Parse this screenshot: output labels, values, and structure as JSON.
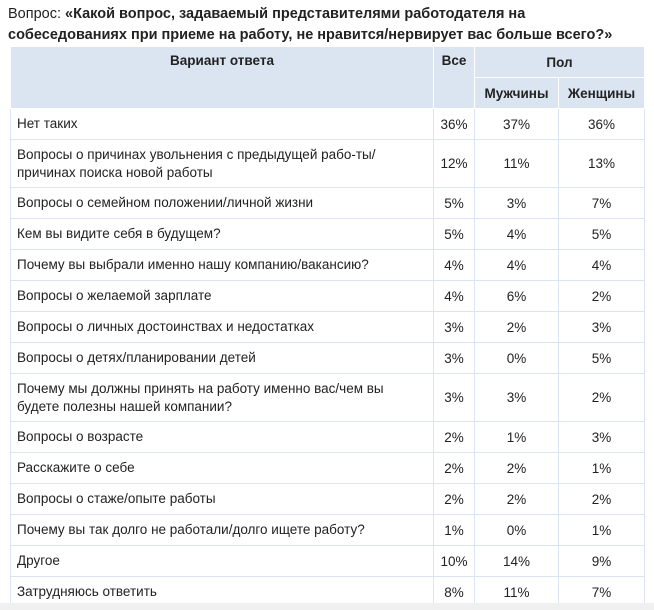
{
  "question_label": "Вопрос:",
  "question_text": "«Какой вопрос, задаваемый представителями работодателя на собеседованиях при приеме на работу, не нравится/нервирует вас больше всего?»",
  "headers": {
    "answer": "Вариант ответа",
    "all": "Все",
    "gender": "Пол",
    "men": "Мужчины",
    "women": "Женщины"
  },
  "rows": [
    {
      "label": "Нет таких",
      "all": "36%",
      "men": "37%",
      "women": "36%"
    },
    {
      "label": "Вопросы о причинах увольнения с предыдущей рабо-ты/причинах поиска новой работы",
      "all": "12%",
      "men": "11%",
      "women": "13%"
    },
    {
      "label": "Вопросы о семейном положении/личной жизни",
      "all": "5%",
      "men": "3%",
      "women": "7%"
    },
    {
      "label": "Кем вы видите себя в будущем?",
      "all": "5%",
      "men": "4%",
      "women": "5%"
    },
    {
      "label": "Почему вы выбрали именно нашу компанию/вакансию?",
      "all": "4%",
      "men": "4%",
      "women": "4%"
    },
    {
      "label": "Вопросы о желаемой зарплате",
      "all": "4%",
      "men": "6%",
      "women": "2%"
    },
    {
      "label": "Вопросы о личных достоинствах и недостатках",
      "all": "3%",
      "men": "2%",
      "women": "3%"
    },
    {
      "label": "Вопросы о детях/планировании детей",
      "all": "3%",
      "men": "0%",
      "women": "5%"
    },
    {
      "label": "Почему мы должны принять на работу именно вас/чем вы будете полезны нашей компании?",
      "all": "3%",
      "men": "3%",
      "women": "2%"
    },
    {
      "label": "Вопросы о возрасте",
      "all": "2%",
      "men": "1%",
      "women": "3%"
    },
    {
      "label": "Расскажите о себе",
      "all": "2%",
      "men": "2%",
      "women": "1%"
    },
    {
      "label": "Вопросы о стаже/опыте работы",
      "all": "2%",
      "men": "2%",
      "women": "2%"
    },
    {
      "label": "Почему вы так долго не работали/долго ищете работу?",
      "all": "1%",
      "men": "0%",
      "women": "1%"
    },
    {
      "label": "Другое",
      "all": "10%",
      "men": "14%",
      "women": "9%"
    },
    {
      "label": "Затрудняюсь ответить",
      "all": "8%",
      "men": "11%",
      "women": "7%"
    }
  ]
}
